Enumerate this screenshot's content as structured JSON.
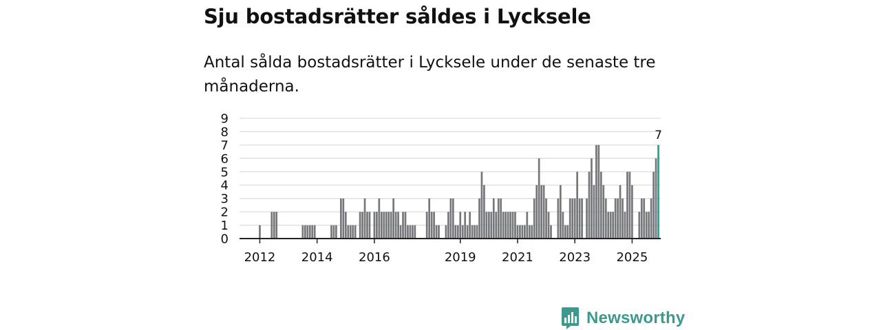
{
  "header": {
    "title": "Sju bostadsrätter såldes i Lycksele",
    "subtitle": "Antal sålda bostadsrätter i Lycksele under de senaste tre månaderna."
  },
  "brand": {
    "name": "Newsworthy",
    "color": "#3a9a8e"
  },
  "colors": {
    "bar": "#76777b",
    "highlight": "#1aa595",
    "grid": "#dddddd",
    "axis": "#222222"
  },
  "chart_data": {
    "type": "bar",
    "title": "Sju bostadsrätter såldes i Lycksele",
    "ylabel": "",
    "xlabel": "",
    "ylim": [
      0,
      9
    ],
    "yticks": [
      "0",
      "1",
      "2",
      "3",
      "4",
      "5",
      "6",
      "7",
      "8",
      "9"
    ],
    "xticks": [
      {
        "label": "2012",
        "index": 8
      },
      {
        "label": "2014",
        "index": 32
      },
      {
        "label": "2016",
        "index": 56
      },
      {
        "label": "2019",
        "index": 92
      },
      {
        "label": "2021",
        "index": 116
      },
      {
        "label": "2023",
        "index": 140
      },
      {
        "label": "2025",
        "index": 164
      }
    ],
    "values": [
      0,
      0,
      0,
      0,
      0,
      0,
      0,
      0,
      1,
      0,
      0,
      0,
      0,
      2,
      2,
      2,
      0,
      0,
      0,
      0,
      0,
      0,
      0,
      0,
      0,
      0,
      1,
      1,
      1,
      1,
      1,
      1,
      0,
      0,
      0,
      0,
      0,
      0,
      1,
      1,
      1,
      0,
      3,
      3,
      2,
      1,
      1,
      1,
      1,
      0,
      2,
      2,
      3,
      2,
      2,
      0,
      2,
      2,
      3,
      2,
      2,
      2,
      2,
      2,
      3,
      2,
      2,
      1,
      2,
      2,
      1,
      1,
      1,
      1,
      0,
      0,
      0,
      0,
      2,
      3,
      2,
      2,
      1,
      1,
      0,
      0,
      1,
      2,
      3,
      3,
      1,
      1,
      2,
      1,
      2,
      1,
      2,
      1,
      1,
      1,
      3,
      5,
      4,
      2,
      2,
      2,
      3,
      2,
      3,
      3,
      2,
      2,
      2,
      2,
      2,
      2,
      1,
      1,
      1,
      1,
      2,
      1,
      1,
      3,
      4,
      6,
      4,
      4,
      3,
      2,
      1,
      0,
      0,
      3,
      4,
      2,
      1,
      1,
      3,
      3,
      3,
      5,
      3,
      3,
      0,
      3,
      5,
      6,
      4,
      7,
      7,
      5,
      4,
      3,
      2,
      2,
      2,
      3,
      3,
      4,
      3,
      2,
      5,
      5,
      4,
      0,
      0,
      2,
      3,
      3,
      2,
      2,
      3,
      5,
      6,
      7
    ],
    "highlight_index": 175,
    "highlight_value_label": "7"
  }
}
